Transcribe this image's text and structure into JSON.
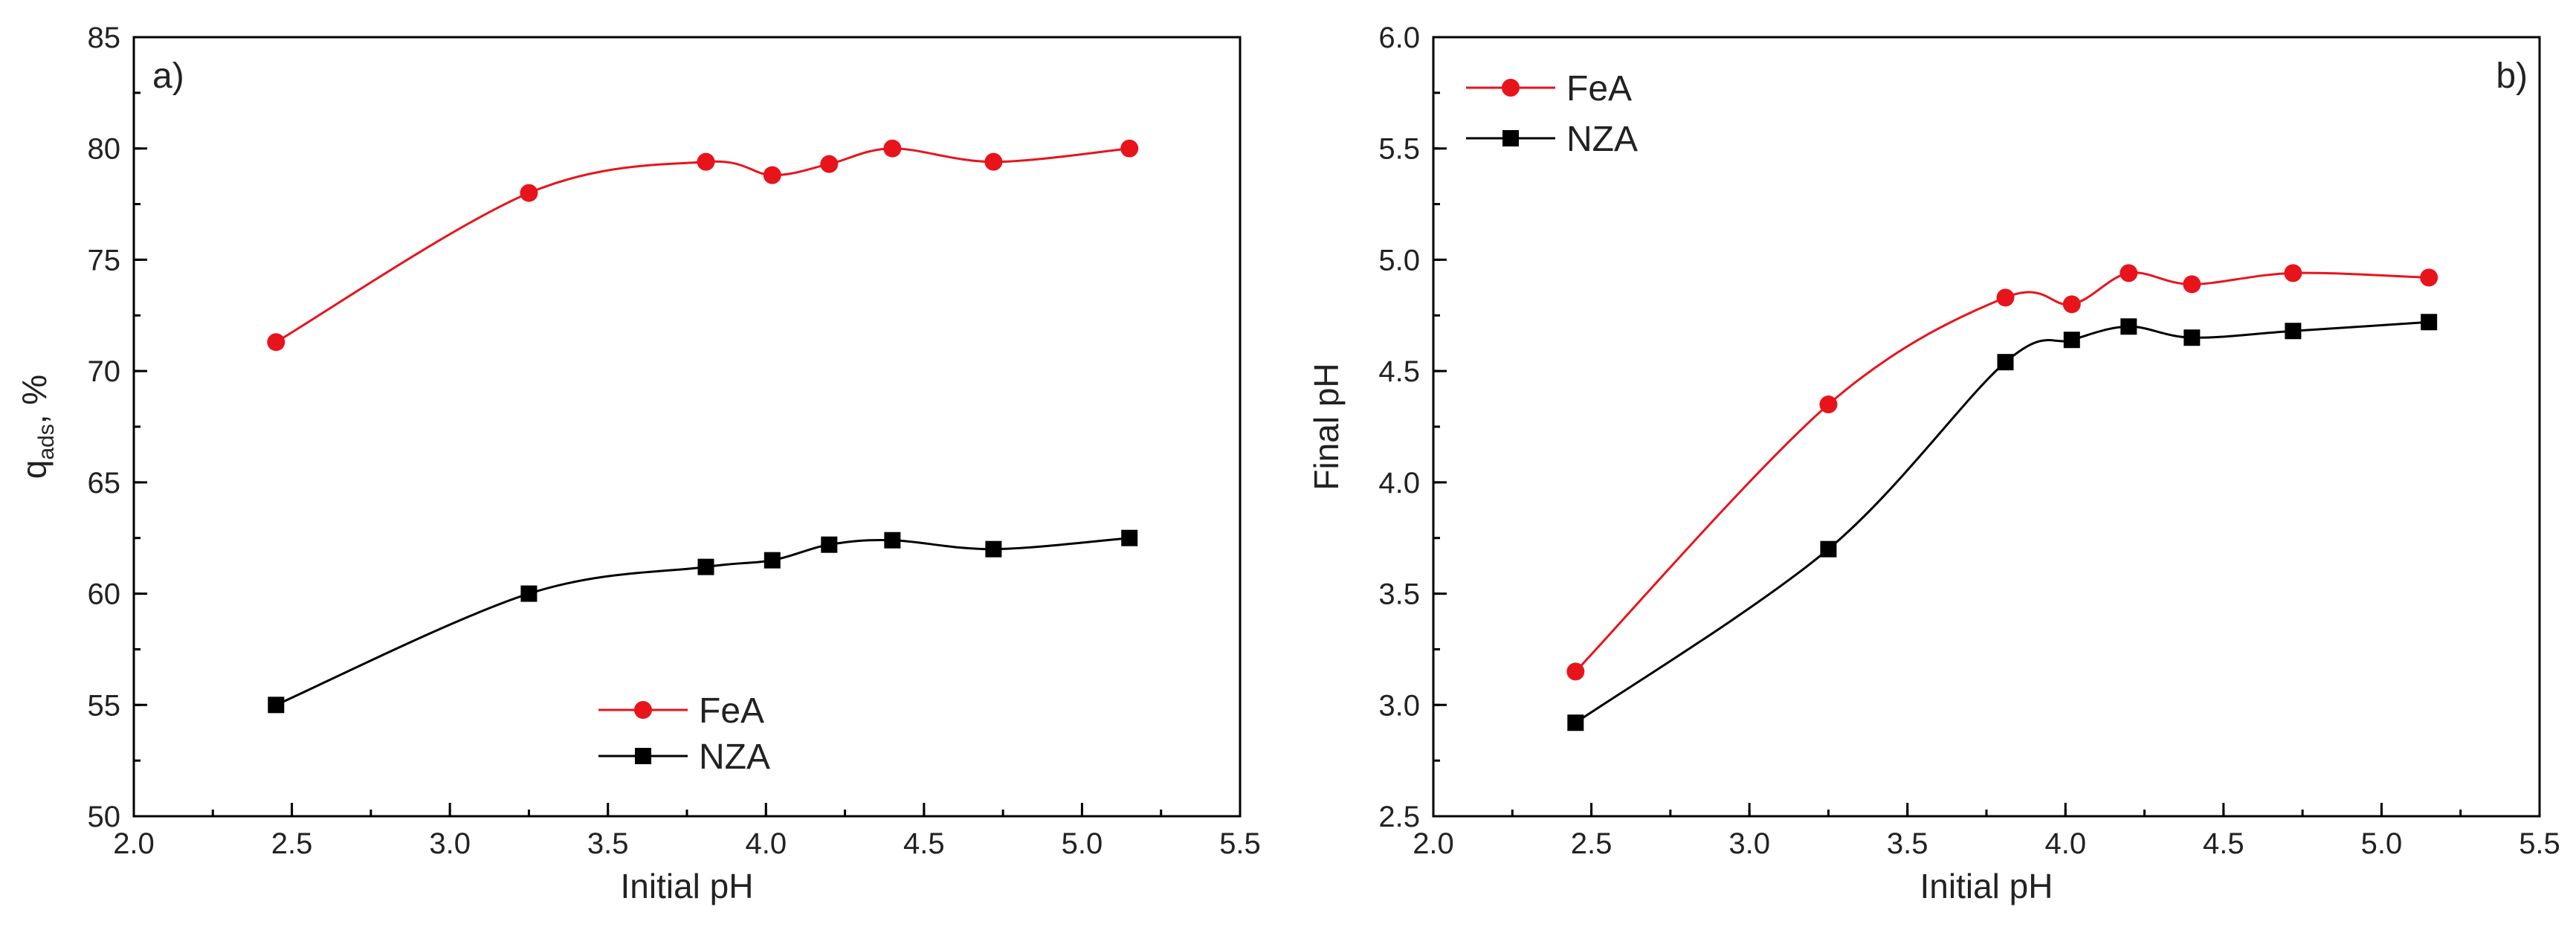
{
  "chart_data": [
    {
      "type": "line",
      "panel_label": "a)",
      "xlabel": "Initial pH",
      "ylabel_main": "q",
      "ylabel_sub": "ads",
      "ylabel_suffix": ", %",
      "xlim": [
        2.0,
        5.5
      ],
      "ylim": [
        50,
        85
      ],
      "x_ticks": [
        2.0,
        2.5,
        3.0,
        3.5,
        4.0,
        4.5,
        5.0,
        5.5
      ],
      "y_ticks": [
        50,
        55,
        60,
        65,
        70,
        75,
        80,
        85
      ],
      "x_minor_step": 0.25,
      "y_minor_step": 2.5,
      "x_decimals": 1,
      "y_decimals": 0,
      "legend_position": "lower-center",
      "series": [
        {
          "name": "FeA",
          "color": "#e8141b",
          "marker": "circle",
          "x": [
            2.45,
            3.25,
            3.81,
            4.02,
            4.2,
            4.4,
            4.72,
            5.15
          ],
          "y": [
            71.3,
            78.0,
            79.4,
            78.8,
            79.3,
            80.0,
            79.4,
            80.0
          ]
        },
        {
          "name": "NZA",
          "color": "#000000",
          "marker": "square",
          "x": [
            2.45,
            3.25,
            3.81,
            4.02,
            4.2,
            4.4,
            4.72,
            5.15
          ],
          "y": [
            55.0,
            60.0,
            61.2,
            61.5,
            62.2,
            62.4,
            62.0,
            62.5
          ]
        }
      ]
    },
    {
      "type": "line",
      "panel_label": "b)",
      "xlabel": "Initial pH",
      "ylabel_main": "Final pH",
      "ylabel_sub": "",
      "ylabel_suffix": "",
      "xlim": [
        2.0,
        5.5
      ],
      "ylim": [
        2.5,
        6.0
      ],
      "x_ticks": [
        2.0,
        2.5,
        3.0,
        3.5,
        4.0,
        4.5,
        5.0,
        5.5
      ],
      "y_ticks": [
        2.5,
        3.0,
        3.5,
        4.0,
        4.5,
        5.0,
        5.5,
        6.0
      ],
      "x_minor_step": 0.25,
      "y_minor_step": 0.25,
      "x_decimals": 1,
      "y_decimals": 1,
      "legend_position": "top-left",
      "series": [
        {
          "name": "FeA",
          "color": "#e8141b",
          "marker": "circle",
          "x": [
            2.45,
            3.25,
            3.81,
            4.02,
            4.2,
            4.4,
            4.72,
            5.15
          ],
          "y": [
            3.15,
            4.35,
            4.83,
            4.8,
            4.94,
            4.89,
            4.94,
            4.92
          ]
        },
        {
          "name": "NZA",
          "color": "#000000",
          "marker": "square",
          "x": [
            2.45,
            3.25,
            3.81,
            4.02,
            4.2,
            4.4,
            4.72,
            5.15
          ],
          "y": [
            2.92,
            3.7,
            4.54,
            4.64,
            4.7,
            4.65,
            4.68,
            4.72
          ]
        }
      ]
    }
  ]
}
